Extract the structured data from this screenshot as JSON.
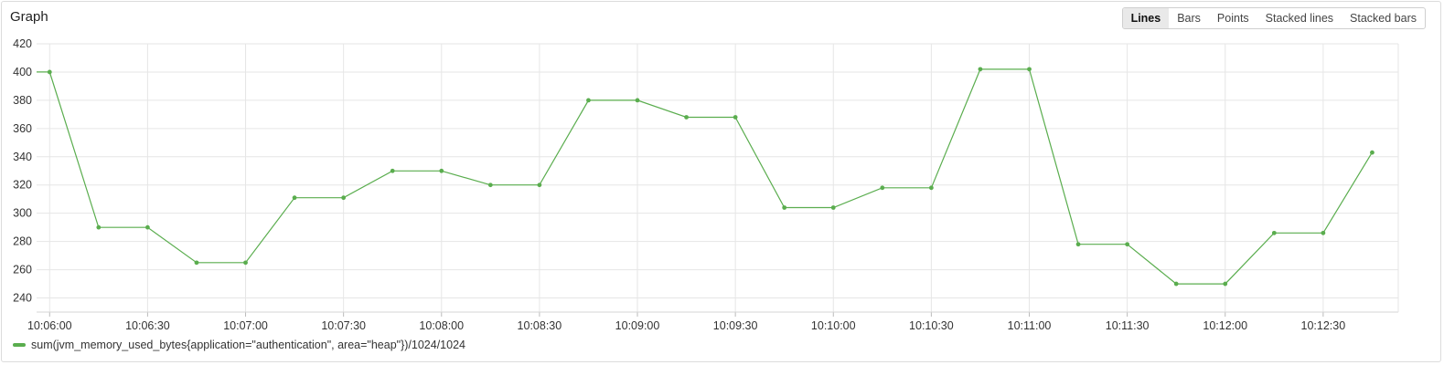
{
  "panel": {
    "title": "Graph"
  },
  "modes": [
    "Lines",
    "Bars",
    "Points",
    "Stacked lines",
    "Stacked bars"
  ],
  "active_mode": "Lines",
  "colors": {
    "series": "#5aad4e",
    "grid": "#e6e6e6",
    "axis_text": "#333333"
  },
  "chart_data": {
    "type": "line",
    "title": "",
    "xlabel": "",
    "ylabel": "",
    "ylim": [
      230,
      420
    ],
    "yticks": [
      240,
      260,
      280,
      300,
      320,
      340,
      360,
      380,
      400,
      420
    ],
    "xticks": [
      "10:06:00",
      "10:06:30",
      "10:07:00",
      "10:07:30",
      "10:08:00",
      "10:08:30",
      "10:09:00",
      "10:09:30",
      "10:10:00",
      "10:10:30",
      "10:11:00",
      "10:11:30",
      "10:12:00",
      "10:12:30"
    ],
    "xlim_seconds_from_first_tick": [
      -4,
      413
    ],
    "grid": true,
    "legend_position": "bottom-left",
    "series": [
      {
        "name": "sum(jvm_memory_used_bytes{application=\"authentication\", area=\"heap\"})/1024/1024",
        "x": [
          "10:06:00",
          "10:06:15",
          "10:06:30",
          "10:06:45",
          "10:07:00",
          "10:07:15",
          "10:07:30",
          "10:07:45",
          "10:08:00",
          "10:08:15",
          "10:08:30",
          "10:08:45",
          "10:09:00",
          "10:09:15",
          "10:09:30",
          "10:09:45",
          "10:10:00",
          "10:10:15",
          "10:10:30",
          "10:10:45",
          "10:11:00",
          "10:11:15",
          "10:11:30",
          "10:11:45",
          "10:12:00",
          "10:12:15",
          "10:12:30",
          "10:12:45"
        ],
        "values": [
          400,
          290,
          290,
          265,
          265,
          311,
          311,
          330,
          330,
          320,
          320,
          380,
          380,
          368,
          368,
          304,
          304,
          318,
          318,
          402,
          402,
          278,
          278,
          250,
          250,
          286,
          286,
          343
        ]
      }
    ]
  }
}
